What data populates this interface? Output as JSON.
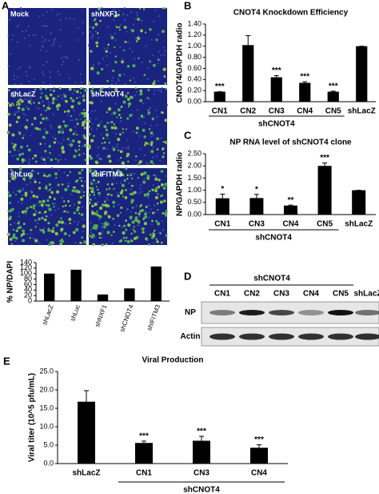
{
  "panel_labels": [
    "A",
    "B",
    "C",
    "D",
    "E"
  ],
  "images": [
    "Mock",
    "shNXF1",
    "shLacZ",
    "shCNOT4",
    "shLuc",
    "shIFITM3"
  ],
  "blot": {
    "group_label": "shCNOT4",
    "lanes": [
      "CN1",
      "CN2",
      "CN3",
      "CN4",
      "CN5",
      "shLacZ"
    ],
    "rows": [
      "NP",
      "Actin"
    ]
  },
  "chart_data": [
    {
      "type": "bar",
      "ylabel": "% NP/DAPI",
      "categories": [
        "shLacZ",
        "shLuc",
        "shNXF1",
        "shCNOT4",
        "shIFITM3"
      ],
      "values": [
        100,
        114,
        24,
        46,
        126
      ],
      "color": "#000000",
      "ylim": [
        0,
        140
      ],
      "yticks": [
        0,
        20,
        40,
        60,
        80,
        100,
        120,
        140
      ]
    },
    {
      "type": "bar",
      "title": "CNOT4 Knockdown Efficiency",
      "ylabel": "CNOT4/GAPDH radio",
      "xlabel": "shCNOT4",
      "categories": [
        "CN1",
        "CN2",
        "CN3",
        "CN4",
        "CN5",
        "shLacZ"
      ],
      "values": [
        0.18,
        1.02,
        0.44,
        0.34,
        0.18,
        1.0
      ],
      "errors": [
        0,
        0.17,
        0.03,
        0.02,
        0.01,
        0
      ],
      "significance": [
        "***",
        null,
        "***",
        "***",
        "***",
        null
      ],
      "color": "#000000",
      "ylim": [
        0,
        1.4
      ],
      "yticks": [
        {
          "value": 0,
          "label": "0.00"
        },
        {
          "value": 0.2,
          "label": "0.20"
        },
        {
          "value": 0.4,
          "label": "0.40"
        },
        {
          "value": 0.6,
          "label": "0.60"
        },
        {
          "value": 0.8,
          "label": "0.80"
        },
        {
          "value": 1,
          "label": "1.00"
        },
        {
          "value": 1.2,
          "label": "1.20"
        },
        {
          "value": 1.4,
          "label": "1.40"
        }
      ]
    },
    {
      "type": "bar",
      "title": "NP RNA level of shCNOT4 clone",
      "ylabel": "NP/GAPDH radio",
      "xlabel": "shCNOT4",
      "categories": [
        "CN1",
        "CN3",
        "CN4",
        "CN5",
        "shLacZ"
      ],
      "values": [
        0.67,
        0.68,
        0.37,
        2.0,
        1.0
      ],
      "errors": [
        0.17,
        0.15,
        0.02,
        0.12,
        0
      ],
      "significance": [
        "*",
        "*",
        "**",
        "***",
        null
      ],
      "color": "#000000",
      "ylim": [
        0,
        2.5
      ],
      "yticks": [
        {
          "value": 0,
          "label": "0.00"
        },
        {
          "value": 0.5,
          "label": "0.50"
        },
        {
          "value": 1,
          "label": "1.00"
        },
        {
          "value": 1.5,
          "label": "1.50"
        },
        {
          "value": 2,
          "label": "2.00"
        },
        {
          "value": 2.5,
          "label": "2.50"
        }
      ]
    },
    {
      "type": "bar",
      "title": "Viral Production",
      "ylabel": "Viral titer  (10^5 pfu/mL)",
      "xlabel": "shCNOT4",
      "categories": [
        "shLacZ",
        "CN1",
        "CN3",
        "CN4"
      ],
      "values": [
        16.8,
        5.6,
        6.2,
        4.3
      ],
      "errors": [
        3,
        0.5,
        1.2,
        0.8
      ],
      "significance": [
        null,
        "***",
        "***",
        "***"
      ],
      "color": "#000000",
      "ylim": [
        0,
        25
      ],
      "yticks": [
        {
          "value": 0,
          "label": "0.0"
        },
        {
          "value": 5,
          "label": "5.0"
        },
        {
          "value": 10,
          "label": "10.0"
        },
        {
          "value": 15,
          "label": "15.0"
        },
        {
          "value": 20,
          "label": "20.0"
        },
        {
          "value": 25,
          "label": "25.0"
        }
      ]
    }
  ]
}
